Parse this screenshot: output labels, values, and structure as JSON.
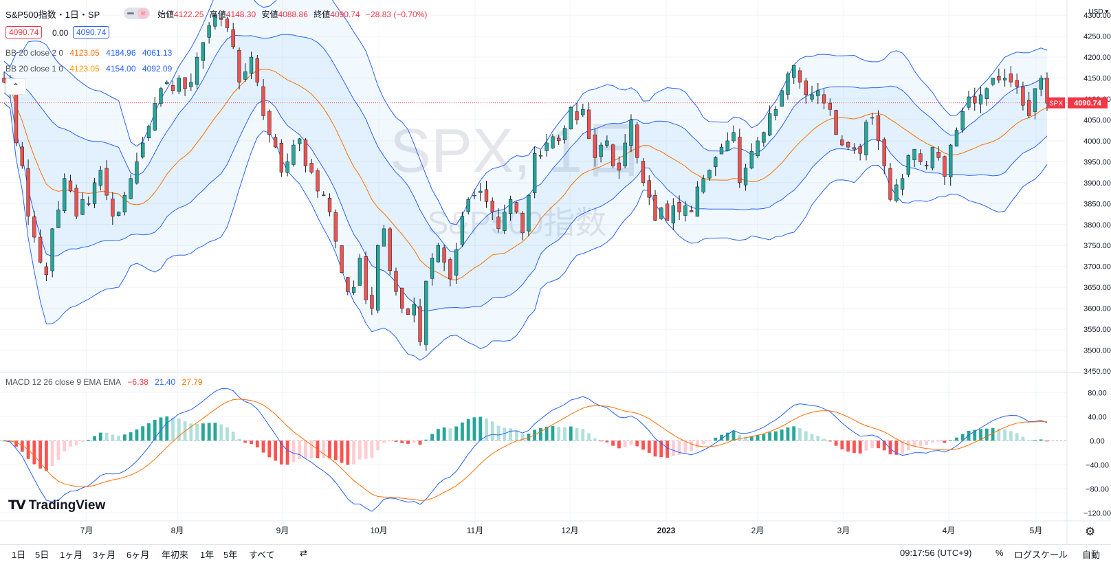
{
  "header": {
    "symbol_title": "S&P500指数・1日・SP",
    "ohlc": [
      {
        "label": "始値",
        "value": "4122.25"
      },
      {
        "label": "高値",
        "value": "4148.30"
      },
      {
        "label": "安値",
        "value": "4088.86"
      },
      {
        "label": "終値",
        "value": "4090.74"
      }
    ],
    "change": "−28.83 (−0.70%)",
    "bid": "4090.74",
    "spread": "0.00",
    "ask": "4090.74",
    "toggle_icon": "≈"
  },
  "indicators": {
    "bb2": {
      "name": "BB 20 close 2 0",
      "basis": "4123.05",
      "upper": "4184.96",
      "lower": "4061.13"
    },
    "bb1": {
      "name": "BB 20 close 1 0",
      "basis": "4123.05",
      "upper": "4154.00",
      "lower": "4092.09"
    },
    "macd": {
      "name": "MACD 12 26 close 9 EMA EMA",
      "hist": "−6.38",
      "macd": "21.40",
      "signal": "27.79"
    }
  },
  "watermark": {
    "symbol": "SPX, 1日",
    "description": "S&P500指数"
  },
  "price_axis": {
    "currency": "USD",
    "ticks": [
      "4300.00",
      "4250.00",
      "4200.00",
      "4150.00",
      "4100.00",
      "4050.00",
      "4000.00",
      "3950.00",
      "3900.00",
      "3850.00",
      "3800.00",
      "3750.00",
      "3700.00",
      "3650.00",
      "3600.00",
      "3550.00",
      "3500.00",
      "3450.00"
    ],
    "last_label": "SPX",
    "last_value": "4090.74"
  },
  "macd_axis": {
    "ticks": [
      "80.00",
      "40.00",
      "0.00",
      "−40.00",
      "−80.00",
      "−120.00"
    ]
  },
  "time_axis": {
    "labels": [
      "7月",
      "8月",
      "9月",
      "10月",
      "11月",
      "12月",
      "2023",
      "2月",
      "3月",
      "4月",
      "5月"
    ]
  },
  "logo": "TradingView",
  "bottom_bar": {
    "ranges": [
      "1日",
      "5日",
      "1ヶ月",
      "3ヶ月",
      "6ヶ月",
      "年初来",
      "1年",
      "5年",
      "すべて"
    ],
    "clock": "09:17:56 (UTC+9)",
    "percent": "%",
    "log_scale": "ログスケール",
    "auto": "自動"
  },
  "colors": {
    "up": "#26a69a",
    "down": "#ef5350",
    "bb_band": "#2962ff",
    "basis": "#ff6d00",
    "macd": "#2962ff",
    "signal": "#ff6d00"
  },
  "chart_data": {
    "type": "candlestick",
    "title": "S&P500指数・1日・SP",
    "x_range": [
      "2022-06-13",
      "2023-05-05"
    ],
    "y_range": [
      3450,
      4320
    ],
    "closes": [
      4140,
      4115,
      3995,
      3940,
      3820,
      3770,
      3710,
      3680,
      3790,
      3835,
      3910,
      3880,
      3820,
      3860,
      3850,
      3900,
      3930,
      3870,
      3820,
      3830,
      3870,
      3910,
      3950,
      3995,
      4035,
      4090,
      4125,
      4140,
      4120,
      4150,
      4125,
      4140,
      4200,
      4235,
      4275,
      4300,
      4290,
      4270,
      4225,
      4140,
      4165,
      4200,
      4140,
      4060,
      4015,
      3985,
      3925,
      3950,
      3990,
      4005,
      3940,
      3925,
      3880,
      3870,
      3830,
      3760,
      3685,
      3640,
      3650,
      3720,
      3620,
      3600,
      3750,
      3790,
      3690,
      3640,
      3600,
      3585,
      3610,
      3520,
      3665,
      3720,
      3750,
      3710,
      3670,
      3740,
      3820,
      3860,
      3870,
      3880,
      3855,
      3830,
      3790,
      3830,
      3860,
      3830,
      3780,
      3870,
      3970,
      3965,
      3995,
      4010,
      4000,
      4030,
      4080,
      4050,
      4075,
      4005,
      3960,
      3990,
      4000,
      3940,
      3930,
      3995,
      4050,
      3960,
      3900,
      3865,
      3810,
      3840,
      3810,
      3845,
      3830,
      3845,
      3830,
      3890,
      3910,
      3930,
      3960,
      3985,
      4000,
      4020,
      3900,
      3935,
      3975,
      4000,
      4020,
      4065,
      4075,
      4120,
      4160,
      4180,
      4140,
      4110,
      4110,
      4120,
      4090,
      4075,
      4015,
      3990,
      3985,
      3980,
      3970,
      4045,
      4055,
      4000,
      3940,
      3860,
      3895,
      3910,
      3965,
      3980,
      3950,
      3940,
      3985,
      3960,
      3915,
      3990,
      4025,
      4070,
      4105,
      4090,
      4110,
      4125,
      4150,
      4145,
      4150,
      4140,
      4130,
      4085,
      4060,
      4125,
      4150,
      4090
    ]
  }
}
